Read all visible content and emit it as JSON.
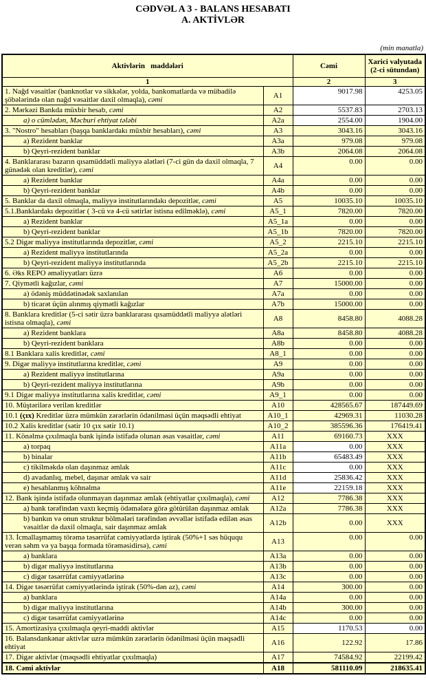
{
  "title_line1": "CƏDVƏL A 3 - BALANS HESABATI",
  "title_line2": "A. AKTİVLƏR",
  "unit_note": "(min manatla)",
  "table": {
    "headers": {
      "items": "Aktivlərin   maddələri",
      "total": "Cəmi",
      "foreign": "Xarici valyutada (2-ci sütundan)"
    },
    "col_numbers": [
      "1",
      "2",
      "3"
    ],
    "rows": [
      {
        "code": "A1",
        "label": [
          "1. Nağd vəsaitlər (banknotlar və sikkələr, yolda, bankomatlarda və mübadilə şöbələrində olan nağd vəsaitlər daxil olmaqla), ",
          {
            "t": "cəmi",
            "s": "i"
          }
        ],
        "total": "9017.98",
        "foreign": "4253.05",
        "white_t": true,
        "white_f": true,
        "vtop": true
      },
      {
        "code": "A2",
        "label": [
          "2. Mərkəzi Bankda müxbir hesab, ",
          {
            "t": "cəmi",
            "s": "i"
          }
        ],
        "total": "5537.83",
        "foreign": "2703.13",
        "white_t": true,
        "white_f": true
      },
      {
        "code": "A2a",
        "label": [
          {
            "t": "a) o cümlədən, Məcburi ehtiyat tələbi",
            "s": "i"
          }
        ],
        "indent": true,
        "total": "2554.00",
        "foreign": "1904.00",
        "white_t": true,
        "white_f": true
      },
      {
        "code": "A3",
        "label": [
          "3. \"Nostro\" hesabları (başqa banklardakı müxbir hesabları), ",
          {
            "t": "cəmi",
            "s": "i"
          }
        ],
        "total": "3043.16",
        "foreign": "3043.16"
      },
      {
        "code": "A3a",
        "label": [
          "a) Rezident banklar"
        ],
        "indent": true,
        "total": "979.08",
        "foreign": "979.08"
      },
      {
        "code": "A3b",
        "label": [
          "b) Qeyri-rezident banklar"
        ],
        "indent": true,
        "total": "2064.08",
        "foreign": "2064.08"
      },
      {
        "code": "A4",
        "label": [
          "4. Banklararası bazarın qısamüddətli maliyyə alətləri (7-ci gün də daxil olmaqla, 7 günədək olan kreditlər), ",
          {
            "t": "cəmi",
            "s": "i"
          }
        ],
        "total": "0.00",
        "foreign": "0.00",
        "vtop": true
      },
      {
        "code": "A4a",
        "label": [
          "a) Rezident banklar"
        ],
        "indent": true,
        "total": "0.00",
        "foreign": "0.00"
      },
      {
        "code": "A4b",
        "label": [
          "b) Qeyri-rezident banklar"
        ],
        "indent": true,
        "total": "0.00",
        "foreign": "0.00"
      },
      {
        "code": "A5",
        "label": [
          "5. Banklar da daxil olmaqla, maliyyə institutlarındakı depozitlər, ",
          {
            "t": "cəmi",
            "s": "i"
          }
        ],
        "total": "10035.10",
        "foreign": "10035.10"
      },
      {
        "code": "A5_1",
        "label": [
          "5.1.Banklardakı depozitlər ( 3-cü və 4-cü sətirlər istisna edilməklə), ",
          {
            "t": "cəmi",
            "s": "i"
          }
        ],
        "total": "7820.00",
        "foreign": "7820.00"
      },
      {
        "code": "A5_1a",
        "label": [
          "a) Rezident banklar"
        ],
        "indent": true,
        "total": "0.00",
        "foreign": "0.00"
      },
      {
        "code": "A5_1b",
        "label": [
          "b) Qeyri-rezident banklar"
        ],
        "indent": true,
        "total": "7820.00",
        "foreign": "7820.00"
      },
      {
        "code": "A5_2",
        "label": [
          "5.2 Digər maliyyə institutlarında depozitlər, ",
          {
            "t": "cəmi",
            "s": "i"
          }
        ],
        "total": "2215.10",
        "foreign": "2215.10"
      },
      {
        "code": "A5_2a",
        "label": [
          "a) Rezident maliyyə institutlarında"
        ],
        "indent": true,
        "total": "0.00",
        "foreign": "0.00"
      },
      {
        "code": "A5_2b",
        "label": [
          "b) Qeyri-rezident maliyyə institutlarında"
        ],
        "indent": true,
        "total": "2215.10",
        "foreign": "2215.10"
      },
      {
        "code": "A6",
        "label": [
          "6. Əks REPO əməliyyatları üzrə"
        ],
        "total": "0.00",
        "foreign": "0.00"
      },
      {
        "code": "A7",
        "label": [
          "7. Qiymətli kağızlar, ",
          {
            "t": "cəmi",
            "s": "i"
          }
        ],
        "total": "15000.00",
        "foreign": "0.00"
      },
      {
        "code": "A7a",
        "label": [
          "a) ödəniş müddətinədək saxlanılan"
        ],
        "indent": true,
        "total": "0.00",
        "foreign": "0.00"
      },
      {
        "code": "A7b",
        "label": [
          "b) ticarət üçün alınmış qiymətli kağızlar"
        ],
        "indent": true,
        "total": "15000.00",
        "foreign": "0.00"
      },
      {
        "code": "A8",
        "label": [
          "8. Banklara kreditlər (5-ci sətir üzrə banklararası qısamüddətli maliyyə alətləri istisna olmaqla), ",
          {
            "t": "cəmi",
            "s": "i"
          }
        ],
        "total": "8458.80",
        "foreign": "4088.28"
      },
      {
        "code": "A8a",
        "label": [
          "a) Rezident banklara"
        ],
        "indent": true,
        "total": "8458.80",
        "foreign": "4088.28"
      },
      {
        "code": "A8b",
        "label": [
          "b) Qeyri-rezident banklara"
        ],
        "indent": true,
        "total": "0.00",
        "foreign": "0.00"
      },
      {
        "code": "A8_1",
        "label": [
          "8.1 Banklara xalis kreditlər, ",
          {
            "t": "cəmi",
            "s": "i"
          }
        ],
        "total": "0.00",
        "foreign": "0.00"
      },
      {
        "code": "A9",
        "label": [
          "9. Digər maliyyə institutlarına kreditlər, ",
          {
            "t": "cəmi",
            "s": "i"
          }
        ],
        "total": "0.00",
        "foreign": "0.00"
      },
      {
        "code": "A9a",
        "label": [
          "a) Rezident maliyyə institutlarına"
        ],
        "indent": true,
        "total": "0.00",
        "foreign": "0.00"
      },
      {
        "code": "A9b",
        "label": [
          "b) Qeyri-rezident maliyyə institutlarına"
        ],
        "indent": true,
        "total": "0.00",
        "foreign": "0.00"
      },
      {
        "code": "A9_1",
        "label": [
          "9.1 Digər maliyyə institutlarına xalis kreditlər, ",
          {
            "t": "cəmi",
            "s": "i"
          }
        ],
        "total": "0.00",
        "foreign": "0.00"
      },
      {
        "code": "A10",
        "label": [
          "10. Müştərilərə verilən kreditlər"
        ],
        "total": "428565.67",
        "foreign": "187449.69"
      },
      {
        "code": "A10_1",
        "label": [
          "10.1 ",
          {
            "t": "(çıx)",
            "s": "b"
          },
          " Kreditlər üzrə mümkün zərərlərin ödənilməsi üçün məqsədli ehtiyat"
        ],
        "total": "42969.31",
        "foreign": "11030.28"
      },
      {
        "code": "A10_2",
        "label": [
          "10.2 Xalis kreditlər (sətir 10 çıx sətir 10.1)"
        ],
        "total": "385596.36",
        "foreign": "176419.41"
      },
      {
        "code": "A11",
        "label": [
          "11. Könəlmə çıxılmaqla bank işində istifadə olunan əsas vəsaitlər, ",
          {
            "t": "cəmi",
            "s": "i"
          }
        ],
        "total": "69160.73",
        "foreign": "XXX"
      },
      {
        "code": "A11a",
        "label": [
          "a) torpaq"
        ],
        "indent": true,
        "total": "0.00",
        "foreign": "XXX",
        "white_t": true
      },
      {
        "code": "A11b",
        "label": [
          "b) binalar"
        ],
        "indent": true,
        "total": "65483.49",
        "foreign": "XXX",
        "white_t": true
      },
      {
        "code": "A11c",
        "label": [
          "c) tikilməkdə olan daşınmaz əmlak"
        ],
        "indent": true,
        "total": "0.00",
        "foreign": "XXX",
        "white_t": true
      },
      {
        "code": "A11d",
        "label": [
          "d) avadanlıq, mebel, daşınar əmlak və sair"
        ],
        "indent": true,
        "total": "25836.42",
        "foreign": "XXX",
        "white_t": true
      },
      {
        "code": "A11e",
        "label": [
          "e) hesablanmış köhnəlmə"
        ],
        "indent": true,
        "total": "22159.18",
        "foreign": "XXX",
        "white_t": true
      },
      {
        "code": "A12",
        "label": [
          "12. Bank işində istifadə olunmayan daşınmaz əmlak (ehtiyatlar çıxılmaqla), ",
          {
            "t": "cəmi",
            "s": "i"
          }
        ],
        "total": "7786.38",
        "foreign": "XXX"
      },
      {
        "code": "A12a",
        "label": [
          "a) bank tərəfindən vaxtı keçmiş ödəmələrə görə götürülən daşınmaz əmlak"
        ],
        "indent": true,
        "total": "7786.38",
        "foreign": "XXX"
      },
      {
        "code": "A12b",
        "label": [
          "b) bankın və onun struktur bölmələri tərəfindən əvvəllər istifadə edilən əsas vəsaitlər də daxil olmaqla, sair daşınmaz əmlak"
        ],
        "indent": true,
        "total": "0.00",
        "foreign": "XXX"
      },
      {
        "code": "A13",
        "label": [
          "13. İcmallaşmamış törəmə təsərrüfat cəmiyyətlərdə iştirak (50%+1 səs hüququ verən səhm və ya başqa formada törəməsidirsə), ",
          {
            "t": "cəmi",
            "s": "i"
          }
        ],
        "total": "0.00",
        "foreign": "0.00",
        "vtop": true
      },
      {
        "code": "A13a",
        "label": [
          "a) banklara"
        ],
        "indent": true,
        "total": "0.00",
        "foreign": "0.00"
      },
      {
        "code": "A13b",
        "label": [
          "b) digər maliyyə institutlarına"
        ],
        "indent": true,
        "total": "0.00",
        "foreign": "0.00"
      },
      {
        "code": "A13c",
        "label": [
          "c) digər təsərrüfat cəmiyyətlərinə"
        ],
        "indent": true,
        "total": "0.00",
        "foreign": "0.00"
      },
      {
        "code": "A14",
        "label": [
          "14. Digər təsərrüfat cəmiyyətlərində iştirak (50%-dən az), ",
          {
            "t": "cəmi",
            "s": "i"
          }
        ],
        "total": "300.00",
        "foreign": "0.00"
      },
      {
        "code": "A14a",
        "label": [
          "a) banklara"
        ],
        "indent": true,
        "total": "0.00",
        "foreign": "0.00"
      },
      {
        "code": "A14b",
        "label": [
          "b) digər maliyyə institutlarına"
        ],
        "indent": true,
        "total": "300.00",
        "foreign": "0.00"
      },
      {
        "code": "A14c",
        "label": [
          "c) digər təsərrüfat cəmiyyətlərinə"
        ],
        "indent": true,
        "total": "0.00",
        "foreign": "0.00"
      },
      {
        "code": "A15",
        "label": [
          "15. Amortizasiya çıxılmaqla qeyri-maddi aktivlər"
        ],
        "total": "1170.53",
        "foreign": "0.00",
        "white_t": true,
        "white_f": true
      },
      {
        "code": "A16",
        "label": [
          "16. Balansdankənar aktivlər uzrə mümkün zərərlərin ödənilməsi üçün məqsədli ehtiyat"
        ],
        "total": "122.92",
        "foreign": "17.86"
      },
      {
        "code": "A17",
        "label": [
          "17. Digər aktivlər (məqsədli ehtiyatlar çıxılmaqla)"
        ],
        "total": "74584.92",
        "foreign": "22199.42"
      },
      {
        "code": "A18",
        "label": [
          "18. Cəmi aktivlər"
        ],
        "total": "581110.09",
        "foreign": "218635.41",
        "bold": true
      }
    ]
  }
}
